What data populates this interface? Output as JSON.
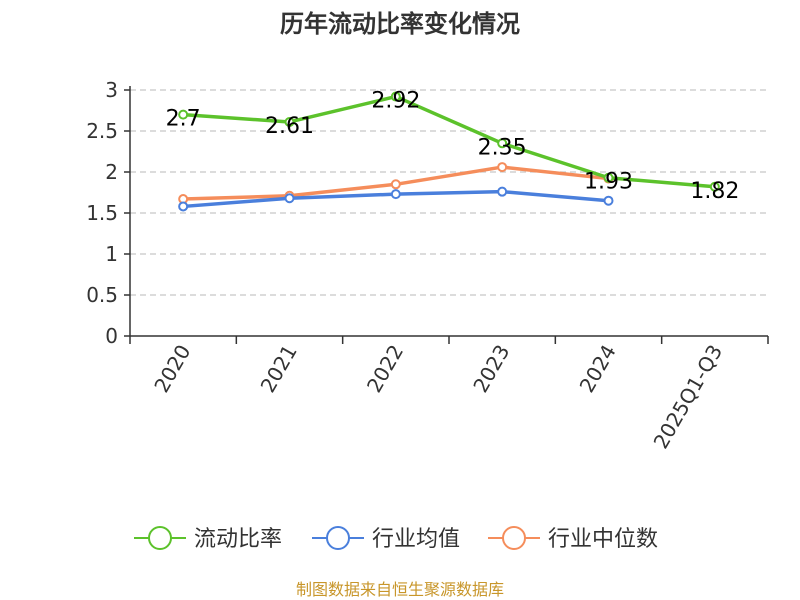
{
  "chart_data": {
    "type": "line",
    "title": "历年流动比率变化情况",
    "categories": [
      "2020",
      "2021",
      "2022",
      "2023",
      "2024",
      "2025Q1-Q3"
    ],
    "ylim": [
      0,
      3
    ],
    "yticks": [
      "0",
      "0.5",
      "1",
      "1.5",
      "2",
      "2.5",
      "3"
    ],
    "ytick_values": [
      0,
      0.5,
      1,
      1.5,
      2,
      2.5,
      3
    ],
    "grid": true,
    "legend_position": "bottom",
    "series": [
      {
        "name": "流动比率",
        "color": "#5cc22b",
        "values": [
          2.7,
          2.61,
          2.92,
          2.35,
          1.93,
          1.82
        ],
        "labels": [
          "2.7",
          "2.61",
          "2.92",
          "2.35",
          "1.93",
          "1.82"
        ]
      },
      {
        "name": "行业均值",
        "color": "#4a7fdc",
        "values": [
          1.58,
          1.68,
          1.73,
          1.76,
          1.65,
          null
        ]
      },
      {
        "name": "行业中位数",
        "color": "#f58d5b",
        "values": [
          1.67,
          1.71,
          1.85,
          2.06,
          1.92,
          null
        ]
      }
    ]
  },
  "source": "制图数据来自恒生聚源数据库"
}
